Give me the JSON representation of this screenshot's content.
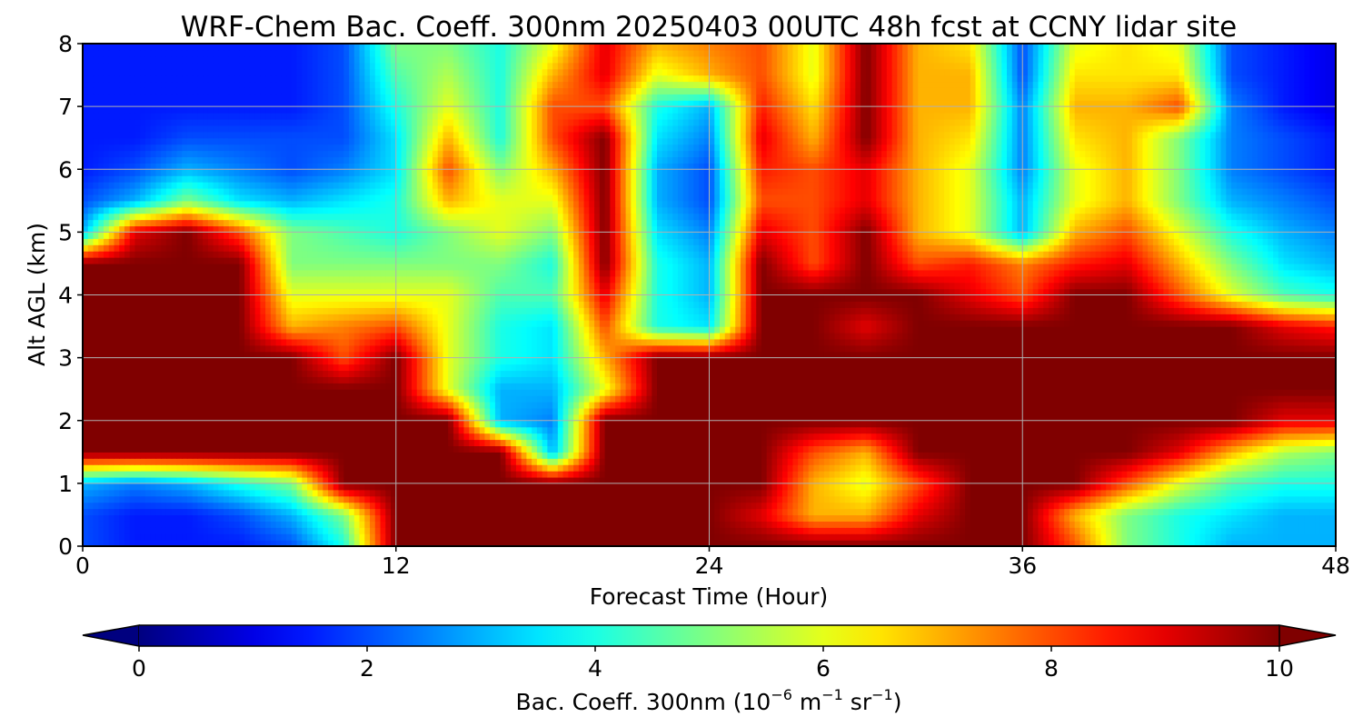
{
  "chart_data": {
    "type": "heatmap",
    "title": "WRF-Chem Bac. Coeff. 300nm  20250403 00UTC 48h fcst at CCNY lidar site",
    "xlabel": "Forecast Time (Hour)",
    "ylabel": "Alt AGL (km)",
    "x_ticks": [
      "0",
      "12",
      "24",
      "36",
      "48"
    ],
    "y_ticks": [
      "0",
      "1",
      "2",
      "3",
      "4",
      "5",
      "6",
      "7",
      "8"
    ],
    "xlim": [
      0,
      48
    ],
    "ylim": [
      0,
      8
    ],
    "grid": true,
    "colormap": "jet",
    "colorbar": {
      "orientation": "horizontal",
      "placement": "bottom",
      "ticks": [
        "0",
        "2",
        "4",
        "6",
        "8",
        "10"
      ],
      "range": [
        0,
        10
      ],
      "extend": "both",
      "label_main": "Bac. Coeff. 300nm  (10",
      "label_exp1": "−6",
      "label_mid": " m",
      "label_exp2": "−1",
      "label_mid2": " sr",
      "label_exp3": "−1",
      "label_end": ")"
    },
    "colors": {
      "under": "#00007f",
      "over": "#7f0000",
      "grid": "#b0b0b0"
    },
    "times_h": [
      0,
      2,
      4,
      6,
      8,
      10,
      12,
      14,
      16,
      18,
      20,
      22,
      24,
      26,
      28,
      30,
      32,
      34,
      36,
      38,
      40,
      42,
      44,
      46,
      48
    ],
    "heights_km": [
      0,
      0.5,
      1,
      1.5,
      2,
      2.5,
      3,
      3.5,
      4,
      4.5,
      5,
      5.5,
      6,
      6.5,
      7,
      7.5,
      8
    ],
    "values": [
      [
        2,
        1.5,
        1.5,
        1.5,
        2,
        4,
        10,
        10,
        10,
        10,
        10,
        10,
        10,
        10,
        10,
        10,
        10,
        10,
        10,
        8,
        5,
        4,
        3,
        3,
        3
      ],
      [
        2,
        1.5,
        1.5,
        2,
        3,
        5,
        10,
        10,
        10,
        10,
        10,
        10,
        10,
        9,
        7,
        7,
        9,
        10,
        10,
        7,
        5,
        4,
        3.5,
        3,
        3
      ],
      [
        3,
        2.5,
        3,
        4,
        5,
        10,
        10,
        10,
        10,
        10,
        10,
        10,
        10,
        10,
        7,
        6,
        8,
        10,
        10,
        10,
        8,
        6,
        4.5,
        4,
        4
      ],
      [
        10,
        10,
        10,
        10,
        10,
        10,
        10,
        10,
        10,
        3,
        10,
        10,
        10,
        10,
        8,
        7,
        10,
        10,
        10,
        10,
        10,
        9,
        7,
        5.5,
        5
      ],
      [
        10,
        10,
        10,
        10,
        10,
        10,
        10,
        10,
        3,
        2.5,
        10,
        10,
        10,
        10,
        10,
        10,
        10,
        10,
        10,
        10,
        10,
        10,
        10,
        9,
        9
      ],
      [
        10,
        10,
        10,
        10,
        10,
        10,
        10,
        6,
        3,
        3,
        6,
        10,
        10,
        10,
        10,
        10,
        10,
        10,
        10,
        10,
        10,
        10,
        10,
        10,
        10
      ],
      [
        10,
        10,
        10,
        10,
        10,
        8,
        10,
        6,
        4,
        3.5,
        7,
        10,
        10,
        10,
        10,
        10,
        10,
        10,
        10,
        10,
        10,
        10,
        10,
        10,
        10
      ],
      [
        10,
        10,
        10,
        10,
        7,
        7.5,
        8,
        6,
        4,
        3.5,
        8,
        4,
        3.5,
        10,
        10,
        9,
        10,
        10,
        10,
        10,
        10,
        10,
        10,
        9,
        8.5
      ],
      [
        10,
        10,
        10,
        10,
        6,
        6,
        6,
        6,
        4.5,
        4.5,
        9,
        4,
        3,
        10,
        10,
        10,
        10,
        9,
        8,
        10,
        10,
        8,
        6,
        4.5,
        4
      ],
      [
        10,
        10,
        10,
        10,
        5,
        5,
        5,
        5,
        5,
        4,
        10,
        4,
        3,
        10,
        8,
        10,
        8,
        8.5,
        7.5,
        8.5,
        9,
        7,
        5,
        3.5,
        3
      ],
      [
        3,
        9,
        10,
        8,
        5,
        4.5,
        4,
        5,
        6,
        5,
        10,
        3.5,
        2.5,
        9,
        8,
        10,
        7,
        6,
        3,
        7,
        8,
        6,
        4,
        3,
        2.5
      ],
      [
        2,
        3,
        5,
        3.5,
        3,
        3.5,
        4,
        7,
        6,
        6,
        10,
        3,
        2,
        8,
        8,
        9,
        7,
        6,
        3,
        6,
        7,
        5,
        3,
        2.5,
        2
      ],
      [
        1.5,
        2,
        3,
        2.5,
        2,
        2.5,
        3.5,
        8,
        5,
        7,
        10,
        3,
        2,
        8.5,
        8,
        9,
        7,
        6,
        2.5,
        6,
        7,
        5,
        2.5,
        2,
        1.5
      ],
      [
        1.5,
        1.5,
        2,
        2,
        2,
        2,
        3.5,
        7,
        4,
        8,
        10,
        3.5,
        2.5,
        9,
        7,
        10,
        7,
        6.5,
        2.5,
        6.5,
        7,
        5,
        2.5,
        2,
        1.5
      ],
      [
        1.5,
        1.5,
        1.5,
        1.5,
        1.5,
        2,
        4,
        6,
        4,
        8,
        8,
        4,
        3,
        8.5,
        6.5,
        10,
        7,
        7,
        2.5,
        7,
        7,
        8,
        2.5,
        1.5,
        1
      ],
      [
        1.5,
        1.5,
        1.5,
        1.5,
        1.5,
        2,
        4.5,
        5.5,
        4,
        7,
        9,
        6,
        7,
        8,
        6,
        10,
        7,
        7,
        2,
        6.5,
        6.5,
        6.5,
        2,
        1.5,
        1
      ],
      [
        1.5,
        1.5,
        1.5,
        1.5,
        1.5,
        2,
        5,
        5,
        4,
        6,
        9,
        7,
        7.5,
        8,
        6,
        10,
        7,
        6.5,
        2,
        6,
        6.5,
        6,
        2,
        1.5,
        1
      ]
    ]
  }
}
